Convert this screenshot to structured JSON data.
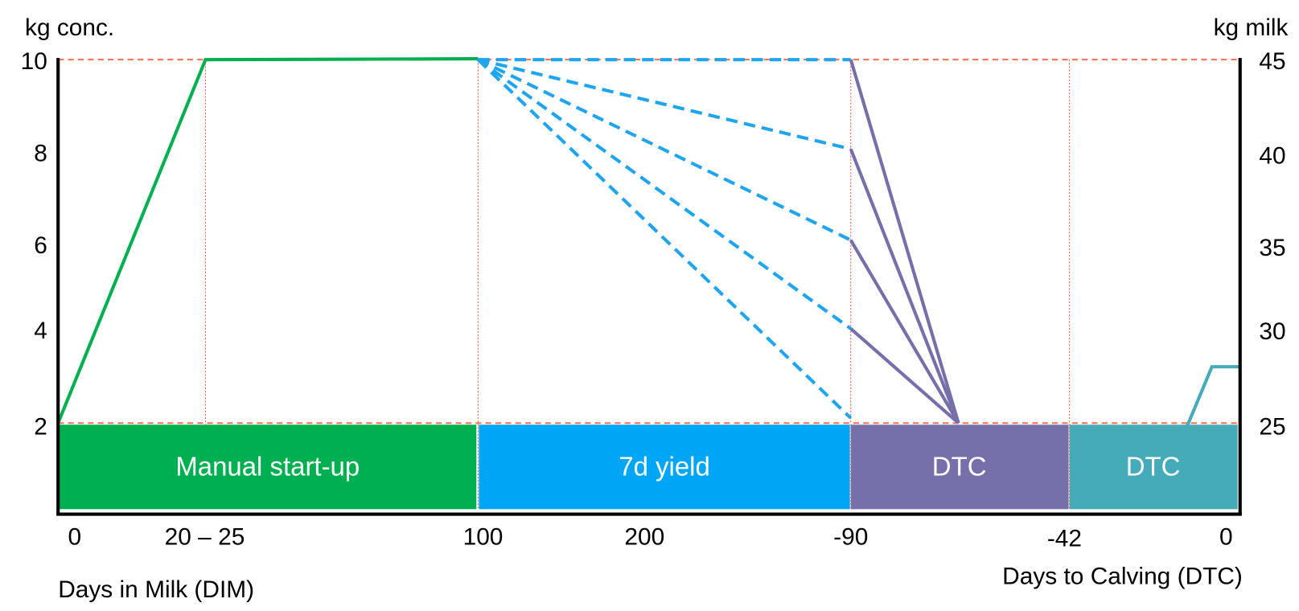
{
  "axes": {
    "left_title": "kg conc.",
    "right_title": "kg milk",
    "left_ticks": [
      "10",
      "8",
      "6",
      "4",
      "2"
    ],
    "right_ticks": [
      "45",
      "40",
      "35",
      "30",
      "25"
    ],
    "x_ticks": [
      "0",
      "20 – 25",
      "100",
      "200",
      "-90",
      "-42",
      "0"
    ],
    "x_title_left": "Days in Milk (DIM)",
    "x_title_right": "Days to Calving (DTC)"
  },
  "phases": [
    "Manual start-up",
    "7d yield",
    "DTC",
    "DTC"
  ]
}
